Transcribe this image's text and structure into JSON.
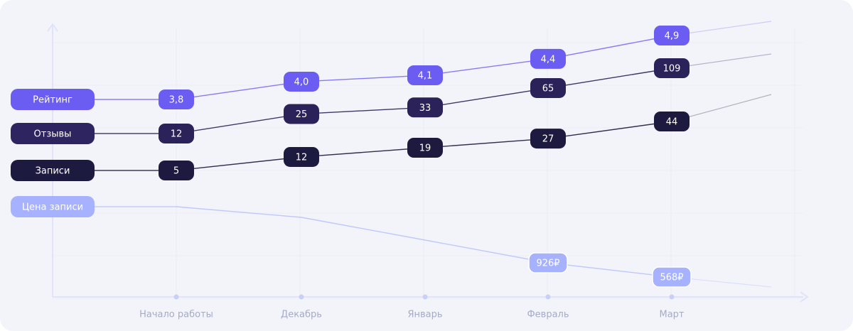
{
  "chart_data": {
    "type": "line",
    "categories": [
      "Начало работы",
      "Декабрь",
      "Январь",
      "Февраль",
      "Март"
    ],
    "series": [
      {
        "name": "Рейтинг",
        "values": [
          3.8,
          4.0,
          4.1,
          4.4,
          4.9
        ],
        "labels": [
          "3,8",
          "4,0",
          "4,1",
          "4,4",
          "4,9"
        ],
        "label_color": "#6c5df2",
        "pill_color": "#6c5df2",
        "line_color": "#7b6df5"
      },
      {
        "name": "Отзывы",
        "values": [
          12,
          25,
          33,
          65,
          109
        ],
        "labels": [
          "12",
          "25",
          "33",
          "65",
          "109"
        ],
        "label_color": "#2e2460",
        "pill_color": "#2a2258",
        "line_color": "#2a2258"
      },
      {
        "name": "Записи",
        "values": [
          5,
          12,
          19,
          27,
          44
        ],
        "labels": [
          "5",
          "12",
          "19",
          "27",
          "44"
        ],
        "label_color": "#1d1a3f",
        "pill_color": "#1d1a3f",
        "line_color": "#1d1a3f"
      },
      {
        "name": "Цена записи",
        "values": [
          null,
          null,
          null,
          926,
          568
        ],
        "labels": [
          "",
          "",
          "",
          "926₽",
          "568₽"
        ],
        "label_color": "#a7b2ff",
        "pill_color": "#a7b2ff",
        "line_color": "#a4b0fb"
      }
    ],
    "legend_placement": "left",
    "grid": true
  }
}
